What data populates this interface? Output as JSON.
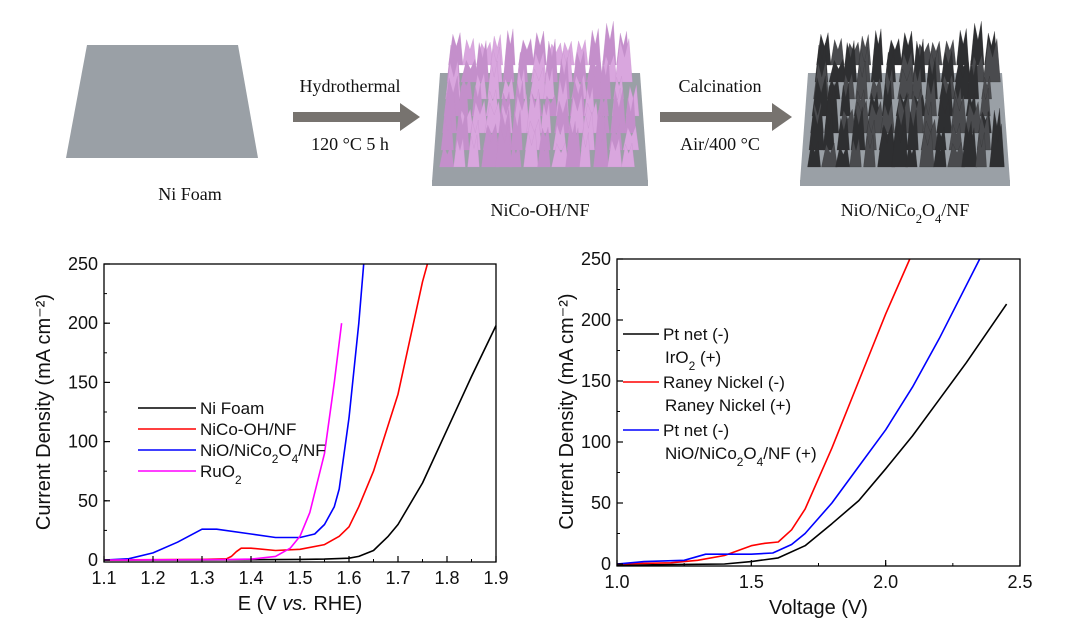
{
  "schematic": {
    "stages": [
      {
        "label": "Ni Foam",
        "color": "#9aa0a6"
      },
      {
        "label": "NiCo-OH/NF",
        "color": "#d9a6de"
      },
      {
        "label": "NiO/NiCo2O4/NF",
        "color": "#4a4b4e"
      }
    ],
    "steps": [
      {
        "top": "Hydrothermal",
        "bottom": "120 °C 5 h"
      },
      {
        "top": "Calcination",
        "bottom": "Air/400 °C"
      }
    ],
    "arrow_color": "#77736f"
  },
  "chart_data": [
    {
      "type": "line",
      "xlabel": "E (V vs. RHE)",
      "ylabel": "Current Density (mA cm⁻²)",
      "xlim": [
        1.1,
        1.9
      ],
      "ylim": [
        0,
        250
      ],
      "xticks": [
        "1.1",
        "1.2",
        "1.3",
        "1.4",
        "1.5",
        "1.6",
        "1.7",
        "1.8",
        "1.9"
      ],
      "yticks": [
        "0",
        "50",
        "100",
        "150",
        "200",
        "250"
      ],
      "grid": false,
      "legend_placement": "center-left",
      "series": [
        {
          "name": "Ni Foam",
          "color": "#000000",
          "x": [
            1.1,
            1.3,
            1.5,
            1.55,
            1.6,
            1.62,
            1.65,
            1.68,
            1.7,
            1.75,
            1.8,
            1.85,
            1.9
          ],
          "y": [
            0,
            0,
            0.5,
            0.8,
            1.5,
            3,
            8,
            20,
            30,
            65,
            110,
            155,
            198
          ]
        },
        {
          "name": "NiCo-OH/NF",
          "color": "#ff0000",
          "x": [
            1.1,
            1.3,
            1.35,
            1.36,
            1.37,
            1.38,
            1.4,
            1.45,
            1.5,
            1.55,
            1.58,
            1.6,
            1.62,
            1.65,
            1.7,
            1.75,
            1.76
          ],
          "y": [
            0,
            0.5,
            1,
            3,
            7,
            10,
            10,
            8,
            9,
            13,
            20,
            28,
            45,
            75,
            140,
            235,
            250
          ]
        },
        {
          "name": "NiO/NiCo2O4/NF",
          "color": "#0000ff",
          "x": [
            1.1,
            1.15,
            1.2,
            1.25,
            1.3,
            1.33,
            1.4,
            1.45,
            1.5,
            1.53,
            1.55,
            1.57,
            1.58,
            1.6,
            1.62,
            1.63
          ],
          "y": [
            0,
            1,
            6,
            15,
            26,
            26,
            22,
            19,
            19,
            22,
            30,
            45,
            60,
            120,
            200,
            250
          ]
        },
        {
          "name": "RuO2",
          "color": "#ff00ff",
          "x": [
            1.1,
            1.35,
            1.4,
            1.45,
            1.48,
            1.5,
            1.52,
            1.55,
            1.57,
            1.585
          ],
          "y": [
            0,
            0.3,
            0.8,
            3,
            10,
            20,
            40,
            90,
            150,
            200
          ]
        }
      ]
    },
    {
      "type": "line",
      "xlabel": "Voltage (V)",
      "ylabel": "Current Density (mA cm⁻²)",
      "xlim": [
        1.0,
        2.5
      ],
      "ylim": [
        0,
        250
      ],
      "xticks": [
        "1.0",
        "1.5",
        "2.0",
        "2.5"
      ],
      "yticks": [
        "0",
        "50",
        "100",
        "150",
        "200",
        "250"
      ],
      "grid": false,
      "legend_placement": "center-left",
      "series": [
        {
          "name": "Pt net (-)",
          "name2": "IrO2 (+)",
          "color": "#000000",
          "x": [
            1.0,
            1.2,
            1.4,
            1.5,
            1.6,
            1.7,
            1.8,
            1.9,
            2.0,
            2.1,
            2.2,
            2.3,
            2.45
          ],
          "y": [
            -1,
            -0.5,
            0,
            2,
            5,
            15,
            33,
            52,
            78,
            105,
            135,
            165,
            213
          ]
        },
        {
          "name": "Raney Nickel (-)",
          "name2": "Raney Nickel (+)",
          "color": "#ff0000",
          "x": [
            1.0,
            1.2,
            1.3,
            1.4,
            1.5,
            1.55,
            1.6,
            1.65,
            1.7,
            1.8,
            1.9,
            2.0,
            2.09
          ],
          "y": [
            0,
            1,
            3,
            7,
            15,
            17,
            18,
            28,
            45,
            95,
            150,
            205,
            250
          ]
        },
        {
          "name": "Pt net (-)",
          "name2": "NiO/NiCo2O4/NF (+)",
          "color": "#0000ff",
          "x": [
            1.0,
            1.1,
            1.25,
            1.33,
            1.5,
            1.58,
            1.65,
            1.7,
            1.8,
            1.9,
            2.0,
            2.1,
            2.2,
            2.35
          ],
          "y": [
            0,
            2,
            3,
            8,
            8,
            9,
            16,
            25,
            50,
            80,
            110,
            145,
            185,
            250
          ]
        }
      ]
    }
  ]
}
